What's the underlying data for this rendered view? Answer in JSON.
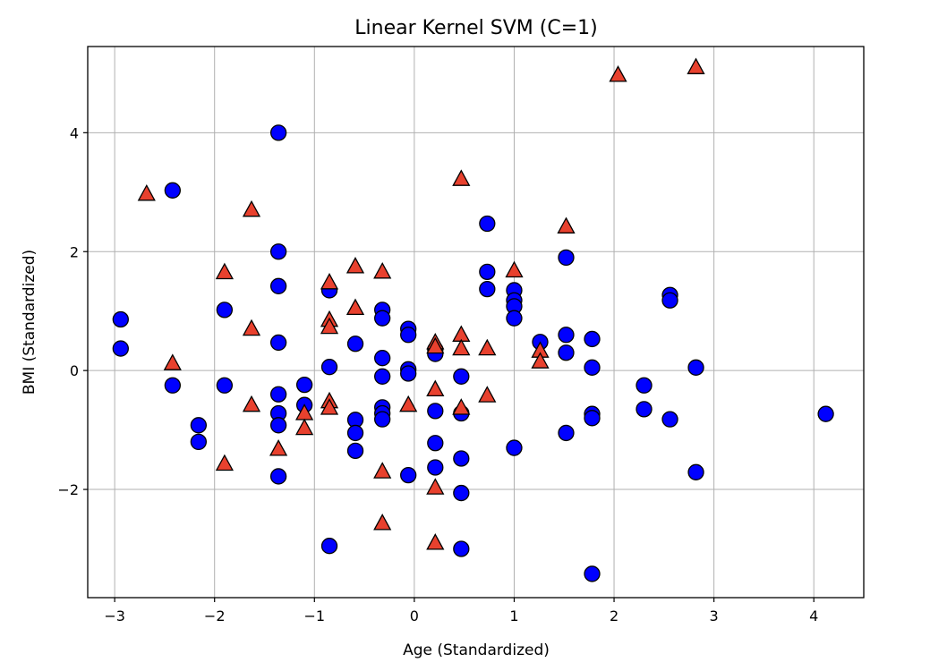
{
  "chart_data": {
    "type": "scatter",
    "title": "Linear Kernel SVM (C=1)",
    "xlabel": "Age (Standardized)",
    "ylabel": "BMI (Standardized)",
    "xlim": [
      -3.27,
      4.5
    ],
    "ylim": [
      -3.82,
      5.45
    ],
    "grid": true,
    "xticks": [
      -3,
      -2,
      -1,
      0,
      1,
      2,
      3,
      4
    ],
    "yticks": [
      -2,
      0,
      2,
      4
    ],
    "series": [
      {
        "marker": "circle",
        "color": "#0000ff",
        "points": [
          [
            -2.94,
            0.86
          ],
          [
            -2.94,
            0.37
          ],
          [
            -2.42,
            3.03
          ],
          [
            -2.42,
            -0.25
          ],
          [
            -2.16,
            -0.92
          ],
          [
            -2.16,
            -1.2
          ],
          [
            -1.9,
            1.02
          ],
          [
            -1.9,
            -0.25
          ],
          [
            -1.36,
            4.0
          ],
          [
            -1.36,
            2.0
          ],
          [
            -1.36,
            1.42
          ],
          [
            -1.36,
            0.47
          ],
          [
            -1.36,
            -0.4
          ],
          [
            -1.36,
            -0.72
          ],
          [
            -1.36,
            -0.92
          ],
          [
            -1.36,
            -1.78
          ],
          [
            -1.1,
            -0.24
          ],
          [
            -1.1,
            -0.58
          ],
          [
            -0.85,
            1.35
          ],
          [
            -0.85,
            0.06
          ],
          [
            -0.85,
            -2.95
          ],
          [
            -0.59,
            0.45
          ],
          [
            -0.59,
            -0.83
          ],
          [
            -0.59,
            -1.05
          ],
          [
            -0.59,
            -1.35
          ],
          [
            -0.32,
            1.02
          ],
          [
            -0.32,
            0.88
          ],
          [
            -0.32,
            0.21
          ],
          [
            -0.32,
            -0.1
          ],
          [
            -0.32,
            -0.62
          ],
          [
            -0.32,
            -0.72
          ],
          [
            -0.32,
            -0.82
          ],
          [
            -0.06,
            0.7
          ],
          [
            -0.06,
            0.6
          ],
          [
            -0.06,
            0.02
          ],
          [
            -0.06,
            -0.05
          ],
          [
            -0.06,
            -1.76
          ],
          [
            0.21,
            0.35
          ],
          [
            0.21,
            0.28
          ],
          [
            0.21,
            -0.68
          ],
          [
            0.21,
            -1.22
          ],
          [
            0.21,
            -1.63
          ],
          [
            0.47,
            -0.1
          ],
          [
            0.47,
            -0.72
          ],
          [
            0.47,
            -1.48
          ],
          [
            0.47,
            -2.06
          ],
          [
            0.47,
            -3.0
          ],
          [
            0.73,
            2.47
          ],
          [
            0.73,
            1.66
          ],
          [
            0.73,
            1.37
          ],
          [
            1.0,
            1.35
          ],
          [
            1.0,
            1.18
          ],
          [
            1.0,
            1.08
          ],
          [
            1.0,
            0.88
          ],
          [
            1.0,
            -1.3
          ],
          [
            1.26,
            0.48
          ],
          [
            1.52,
            1.9
          ],
          [
            1.52,
            0.6
          ],
          [
            1.52,
            0.3
          ],
          [
            1.52,
            -1.05
          ],
          [
            1.78,
            0.53
          ],
          [
            1.78,
            0.05
          ],
          [
            1.78,
            -0.73
          ],
          [
            1.78,
            -0.8
          ],
          [
            1.78,
            -3.42
          ],
          [
            2.3,
            -0.25
          ],
          [
            2.3,
            -0.65
          ],
          [
            2.56,
            1.27
          ],
          [
            2.56,
            1.18
          ],
          [
            2.56,
            -0.82
          ],
          [
            2.82,
            0.05
          ],
          [
            2.82,
            -1.71
          ],
          [
            4.12,
            -0.73
          ]
        ]
      },
      {
        "marker": "triangle",
        "color": "#e8412e",
        "points": [
          [
            -2.68,
            2.97
          ],
          [
            -2.42,
            0.12
          ],
          [
            -1.9,
            1.65
          ],
          [
            -1.9,
            -1.57
          ],
          [
            -1.63,
            2.7
          ],
          [
            -1.63,
            0.7
          ],
          [
            -1.63,
            -0.58
          ],
          [
            -1.36,
            -1.32
          ],
          [
            -1.1,
            -0.72
          ],
          [
            -1.1,
            -0.97
          ],
          [
            -0.85,
            1.48
          ],
          [
            -0.85,
            0.85
          ],
          [
            -0.85,
            0.73
          ],
          [
            -0.85,
            -0.52
          ],
          [
            -0.85,
            -0.63
          ],
          [
            -0.59,
            1.75
          ],
          [
            -0.59,
            1.05
          ],
          [
            -0.32,
            1.66
          ],
          [
            -0.32,
            -1.7
          ],
          [
            -0.32,
            -2.57
          ],
          [
            -0.06,
            -0.58
          ],
          [
            0.21,
            0.47
          ],
          [
            0.21,
            0.4
          ],
          [
            0.21,
            -0.32
          ],
          [
            0.21,
            -1.97
          ],
          [
            0.21,
            -2.9
          ],
          [
            0.47,
            3.22
          ],
          [
            0.47,
            0.6
          ],
          [
            0.47,
            0.37
          ],
          [
            0.47,
            -0.63
          ],
          [
            0.73,
            0.37
          ],
          [
            0.73,
            -0.42
          ],
          [
            1.0,
            1.68
          ],
          [
            1.26,
            0.33
          ],
          [
            1.26,
            0.15
          ],
          [
            1.52,
            2.42
          ],
          [
            2.04,
            4.97
          ],
          [
            2.82,
            5.1
          ]
        ]
      }
    ]
  }
}
